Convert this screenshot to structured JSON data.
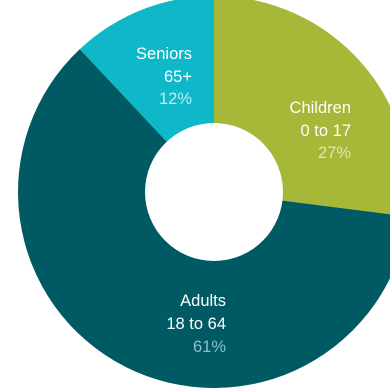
{
  "chart_data": {
    "type": "pie",
    "donut": true,
    "title": "",
    "slices": [
      {
        "label": "Children",
        "range": "0 to 17",
        "value": 27,
        "value_label": "27%",
        "color": "#a7b738",
        "pct_color": "#e3e6b0"
      },
      {
        "label": "Adults",
        "range": "18 to 64",
        "value": 61,
        "value_label": "61%",
        "color": "#005a64",
        "pct_color": "#8cc2c8"
      },
      {
        "label": "Seniors",
        "range": "65+",
        "value": 12,
        "value_label": "12%",
        "color": "#0eb8c8",
        "pct_color": "#c2ecf2"
      }
    ],
    "start_angle_deg": 0,
    "direction": "clockwise",
    "center_color": "#ffffff",
    "grid": false,
    "legend": "none"
  }
}
